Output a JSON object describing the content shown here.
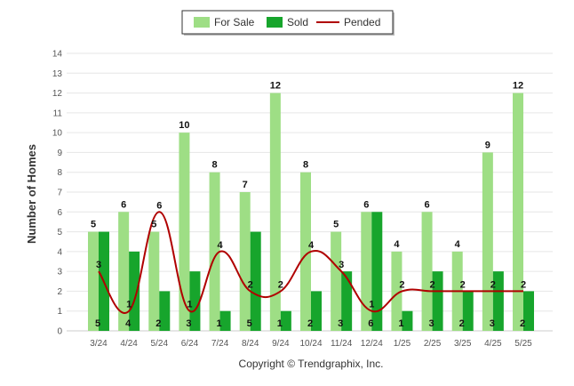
{
  "chart_data": {
    "type": "bar",
    "categories": [
      "3/24",
      "4/24",
      "5/24",
      "6/24",
      "7/24",
      "8/24",
      "9/24",
      "10/24",
      "11/24",
      "12/24",
      "1/25",
      "2/25",
      "3/25",
      "4/25",
      "5/25"
    ],
    "series": [
      {
        "name": "For Sale",
        "type": "bar",
        "color": "#9ede85",
        "values": [
          5,
          6,
          5,
          10,
          8,
          7,
          12,
          8,
          5,
          6,
          4,
          6,
          4,
          9,
          12
        ]
      },
      {
        "name": "Sold",
        "type": "bar",
        "color": "#17a52c",
        "values": [
          5,
          4,
          2,
          3,
          1,
          5,
          1,
          2,
          3,
          6,
          1,
          3,
          2,
          3,
          2
        ]
      },
      {
        "name": "Pended",
        "type": "line",
        "color": "#b00000",
        "values": [
          3,
          1,
          6,
          1,
          4,
          2,
          2,
          4,
          3,
          1,
          2,
          2,
          2,
          2,
          2
        ]
      }
    ],
    "ylabel": "Number of Homes",
    "ylim": [
      0,
      14
    ],
    "yticks": [
      "0",
      "1",
      "2",
      "3",
      "4",
      "5",
      "6",
      "7",
      "8",
      "9",
      "10",
      "11",
      "12",
      "13",
      "14"
    ],
    "legend_position": "top-center",
    "grid": true,
    "credit": "Copyright © Trendgraphix, Inc."
  }
}
